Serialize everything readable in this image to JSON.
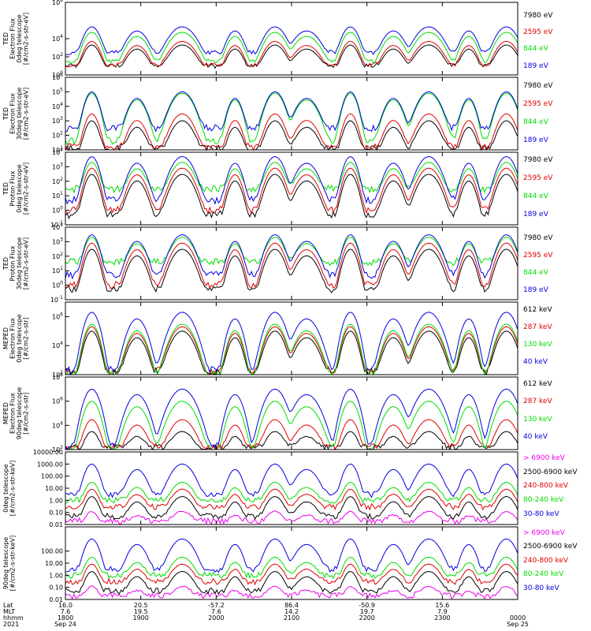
{
  "chart_data": [
    {
      "type": "line",
      "ylabel": [
        "TED",
        "Electron Flux",
        "0deg telescope",
        "[#/cm2-s-str-eV]"
      ],
      "yscale": "log",
      "ylim": [
        1,
        100000000
      ],
      "ytick_labels": [
        "10^8",
        "10^4",
        "10^2",
        "10^0"
      ],
      "ytick_exps": [
        8,
        4,
        2,
        0
      ],
      "series": [
        {
          "name": "7980 eV",
          "color": "#000000",
          "baseline": 10,
          "peak": 2000
        },
        {
          "name": "2595 eV",
          "color": "#e00000",
          "baseline": 12,
          "peak": 5000
        },
        {
          "name": "844 eV",
          "color": "#00dd00",
          "baseline": 30,
          "peak": 50000
        },
        {
          "name": "189 eV",
          "color": "#0000e0",
          "baseline": 300,
          "peak": 200000
        }
      ]
    },
    {
      "type": "line",
      "ylabel": [
        "TED",
        "Electron Flux",
        "30deg telescope",
        "[#/cm2-s-str-eV]"
      ],
      "yscale": "log",
      "ylim": [
        10,
        1000000
      ],
      "ytick_labels": [
        "10^6",
        "10^5",
        "10^4",
        "10^3",
        "10^2",
        "10^1"
      ],
      "ytick_exps": [
        6,
        5,
        4,
        3,
        2,
        1
      ],
      "series": [
        {
          "name": "7980 eV",
          "color": "#000000",
          "baseline": 12,
          "peak": 1000
        },
        {
          "name": "2595 eV",
          "color": "#e00000",
          "baseline": 15,
          "peak": 3000
        },
        {
          "name": "844 eV",
          "color": "#00dd00",
          "baseline": 40,
          "peak": 80000
        },
        {
          "name": "189 eV",
          "color": "#0000e0",
          "baseline": 300,
          "peak": 100000
        }
      ]
    },
    {
      "type": "line",
      "ylabel": [
        "TED",
        "Proton Flux",
        "0deg telescope",
        "[#/cm2-s-str-eV]"
      ],
      "yscale": "log",
      "ylim": [
        0.1,
        10000
      ],
      "ytick_labels": [
        "10^4",
        "10^3",
        "10^2",
        "10^1",
        "10^0",
        "10^-1"
      ],
      "ytick_exps": [
        4,
        3,
        2,
        1,
        0,
        -1
      ],
      "series": [
        {
          "name": "7980 eV",
          "color": "#000000",
          "baseline": 0.5,
          "peak": 300
        },
        {
          "name": "2595 eV",
          "color": "#e00000",
          "baseline": 1,
          "peak": 800
        },
        {
          "name": "844 eV",
          "color": "#00dd00",
          "baseline": 30,
          "peak": 2000
        },
        {
          "name": "189 eV",
          "color": "#0000e0",
          "baseline": 5,
          "peak": 5000
        }
      ]
    },
    {
      "type": "line",
      "ylabel": [
        "TED",
        "Proton Flux",
        "30deg telescope",
        "[#/cm2-s-str-eV]"
      ],
      "yscale": "log",
      "ylim": [
        0.1,
        10000
      ],
      "ytick_labels": [
        "10^4",
        "10^3",
        "10^2",
        "10^1",
        "10^0",
        "10^-1"
      ],
      "ytick_exps": [
        4,
        3,
        2,
        1,
        0,
        -1
      ],
      "series": [
        {
          "name": "7980 eV",
          "color": "#000000",
          "baseline": 0.5,
          "peak": 300
        },
        {
          "name": "2595 eV",
          "color": "#e00000",
          "baseline": 1,
          "peak": 800
        },
        {
          "name": "844 eV",
          "color": "#00dd00",
          "baseline": 40,
          "peak": 2000
        },
        {
          "name": "189 eV",
          "color": "#0000e0",
          "baseline": 5,
          "peak": 3000
        }
      ]
    },
    {
      "type": "line",
      "ylabel": [
        "MEPED",
        "Electron Flux",
        "0deg telescope",
        "[#/cm2-s-str]"
      ],
      "yscale": "log",
      "ylim": [
        100,
        10000000
      ],
      "ytick_labels": [
        "10^6",
        "10^4",
        "10^2"
      ],
      "ytick_exps": [
        6,
        4,
        2
      ],
      "series": [
        {
          "name": "612 keV",
          "color": "#000000",
          "baseline": 150,
          "peak": 100000
        },
        {
          "name": "287 keV",
          "color": "#e00000",
          "baseline": 180,
          "peak": 200000
        },
        {
          "name": "130 keV",
          "color": "#00dd00",
          "baseline": 110,
          "peak": 300000
        },
        {
          "name": "40 keV",
          "color": "#0000e0",
          "baseline": 200,
          "peak": 2000000
        }
      ]
    },
    {
      "type": "line",
      "ylabel": [
        "MEPED",
        "Electron Flux",
        "90deg telescope",
        "[#/cm2-s-str]"
      ],
      "yscale": "log",
      "ylim": [
        100,
        100000000
      ],
      "ytick_labels": [
        "10^8",
        "10^6",
        "10^4",
        "10^2"
      ],
      "ytick_exps": [
        8,
        6,
        4,
        2
      ],
      "series": [
        {
          "name": "612 keV",
          "color": "#000000",
          "baseline": 150,
          "peak": 3000
        },
        {
          "name": "287 keV",
          "color": "#e00000",
          "baseline": 180,
          "peak": 30000
        },
        {
          "name": "130 keV",
          "color": "#00dd00",
          "baseline": 110,
          "peak": 1000000
        },
        {
          "name": "40 keV",
          "color": "#0000e0",
          "baseline": 200,
          "peak": 10000000
        }
      ]
    },
    {
      "type": "line",
      "ylabel": [
        "0deg telescope",
        "[#/cm2-s-str-keV]"
      ],
      "yscale": "log",
      "ylim": [
        0.01,
        10000
      ],
      "ytick_labels": [
        "10000.00",
        "1000.00",
        "100.00",
        "10.00",
        "1.00",
        "0.10",
        "0.01"
      ],
      "ytick_exps": [
        4,
        3,
        2,
        1,
        0,
        -1,
        -2
      ],
      "series": [
        {
          "name": "> 6900 keV",
          "color": "#ee00ee",
          "baseline": 0.02,
          "peak": 0.1
        },
        {
          "name": "2500-6900 keV",
          "color": "#000000",
          "baseline": 0.05,
          "peak": 2
        },
        {
          "name": "240-800 keV",
          "color": "#e00000",
          "baseline": 0.3,
          "peak": 8
        },
        {
          "name": "80-240 keV",
          "color": "#00dd00",
          "baseline": 1,
          "peak": 30
        },
        {
          "name": "30-80 keV",
          "color": "#0000e0",
          "baseline": 3,
          "peak": 1000
        }
      ]
    },
    {
      "type": "line",
      "ylabel": [
        "90deg telescope",
        "[#/cm2-s-str-keV]"
      ],
      "yscale": "log",
      "ylim": [
        0.01,
        10000
      ],
      "ytick_labels": [
        "100.00",
        "10.00",
        "1.00",
        "0.10",
        "0.01"
      ],
      "ytick_exps": [
        2,
        1,
        0,
        -1,
        -2
      ],
      "series": [
        {
          "name": "> 6900 keV",
          "color": "#ee00ee",
          "baseline": 0.02,
          "peak": 0.1
        },
        {
          "name": "2500-6900 keV",
          "color": "#000000",
          "baseline": 0.05,
          "peak": 2
        },
        {
          "name": "240-800 keV",
          "color": "#e00000",
          "baseline": 0.3,
          "peak": 8
        },
        {
          "name": "80-240 keV",
          "color": "#00dd00",
          "baseline": 1,
          "peak": 30
        },
        {
          "name": "30-80 keV",
          "color": "#0000e0",
          "baseline": 3,
          "peak": 1000
        }
      ]
    }
  ],
  "time_axis": {
    "units": "hhmm UT",
    "xlim_hours": [
      18.0,
      24.0
    ],
    "event_hours": [
      18.35,
      18.95,
      19.55,
      20.25,
      20.78,
      21.2,
      21.78,
      22.35,
      22.82,
      23.35,
      23.85
    ],
    "row_labels": {
      "lat": "Lat",
      "mlt": "MLT",
      "hhmm": "hhmm",
      "year": "2021"
    },
    "ticks": [
      {
        "hour": 18.0,
        "lat": "16.0",
        "mlt": "7.6",
        "hhmm": "1800",
        "date": "Sep 24"
      },
      {
        "hour": 19.0,
        "lat": "20.5",
        "mlt": "19.5",
        "hhmm": "1900",
        "date": ""
      },
      {
        "hour": 20.0,
        "lat": "-57.2",
        "mlt": "7.6",
        "hhmm": "2000",
        "date": ""
      },
      {
        "hour": 21.0,
        "lat": "86.4",
        "mlt": "14.2",
        "hhmm": "2100",
        "date": ""
      },
      {
        "hour": 22.0,
        "lat": "-50.9",
        "mlt": "19.7",
        "hhmm": "2200",
        "date": ""
      },
      {
        "hour": 23.0,
        "lat": "15.6",
        "mlt": "7.9",
        "hhmm": "2300",
        "date": ""
      },
      {
        "hour": 24.0,
        "lat": "",
        "mlt": "",
        "hhmm": "0000",
        "date": "Sep 25"
      }
    ]
  }
}
